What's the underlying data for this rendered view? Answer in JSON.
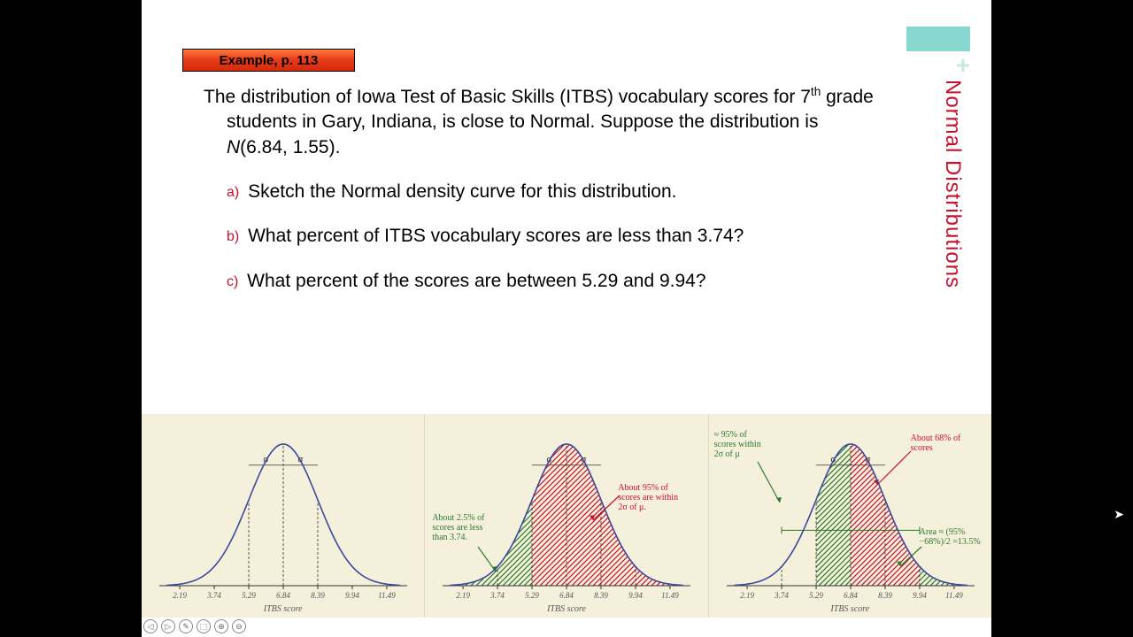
{
  "header": {
    "label": "Example, p. 113"
  },
  "side_title": "Normal Distributions",
  "intro": {
    "text1": "The distribution of Iowa Test of Basic Skills (ITBS) vocabulary ",
    "text2": "scores for 7",
    "sup": "th",
    "text3": " grade students in Gary, Indiana, is close to Normal.  Suppose the distribution is ",
    "ital": "N",
    "text4": "(6.84, 1.55)."
  },
  "questions": [
    {
      "label": "a)",
      "text": "Sketch the Normal density curve for this distribution."
    },
    {
      "label": "b)",
      "text": "What percent of ITBS vocabulary scores are less than 3.74?"
    },
    {
      "label": "c)",
      "text": "What percent of the scores are between 5.29 and 9.94?"
    }
  ],
  "chart_common": {
    "xticks": [
      "2.19",
      "3.74",
      "5.29",
      "6.84",
      "8.39",
      "9.94",
      "11.49"
    ],
    "xlabel": "ITBS score",
    "curve_color": "#3a4a9a",
    "bg_color": "#f5f0db",
    "tick_color": "#555555",
    "sigma_label": "σ"
  },
  "chart1": {
    "annotations": []
  },
  "chart2": {
    "hatch_red_range": [
      2,
      6
    ],
    "hatch_green_range": [
      0,
      2
    ],
    "annot_red": "About 95% of scores are within 2σ of μ.",
    "annot_green": "About 2.5% of scores are less than 3.74."
  },
  "chart3": {
    "hatch_red_range": [
      3,
      5
    ],
    "hatch_green_range_left": [
      2,
      3
    ],
    "hatch_green_range_right": [
      5,
      6
    ],
    "annot_top_green": "≈ 95% of scores within 2σ of μ",
    "annot_top_red": "About 68% of scores",
    "annot_bottom_green": "Area ≈ (95%−68%)/2 =13.5%"
  },
  "colors": {
    "red": "#c8102e",
    "green": "#2a7a2a",
    "curve": "#3a4a9a",
    "teal": "#88d8d0"
  },
  "controls": [
    "◁",
    "▷",
    "✎",
    "⬚",
    "⊕",
    "⊖"
  ]
}
